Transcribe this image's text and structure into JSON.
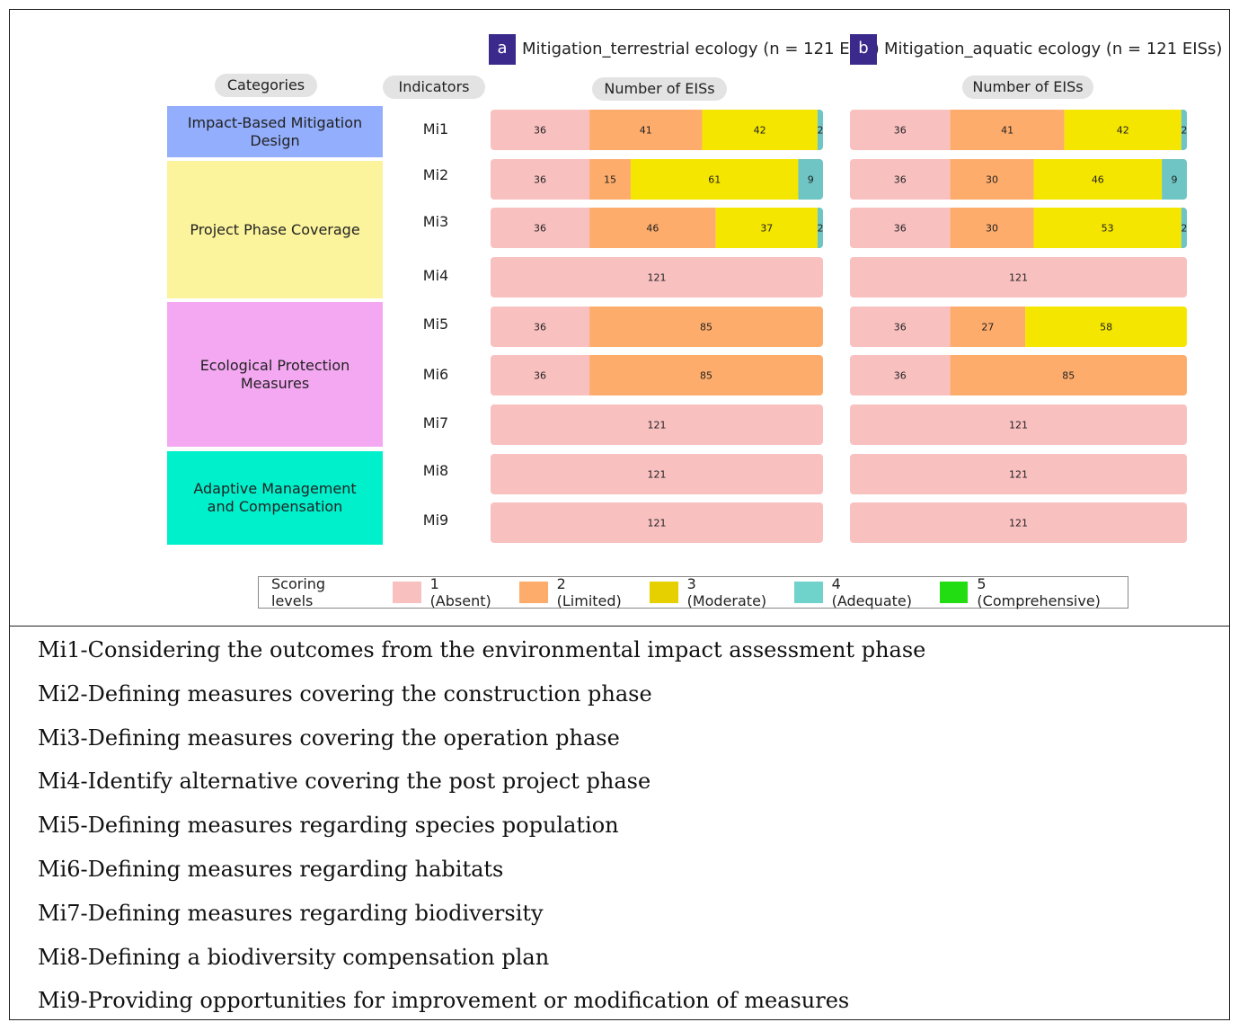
{
  "chart_data": [
    {
      "type": "bar",
      "orientation": "horizontal",
      "stacked": true,
      "panel_label": "a",
      "title": "Mitigation_terrestrial ecology (n = 121 EISs)",
      "xlabel": "Number of EISs",
      "categories": [
        "Mi1",
        "Mi2",
        "Mi3",
        "Mi4",
        "Mi5",
        "Mi6",
        "Mi7",
        "Mi8",
        "Mi9"
      ],
      "xlim": [
        0,
        121
      ],
      "series": [
        {
          "name": "1 (Absent)",
          "values": [
            36,
            36,
            36,
            121,
            36,
            36,
            121,
            121,
            121
          ]
        },
        {
          "name": "2 (Limited)",
          "values": [
            41,
            15,
            46,
            0,
            85,
            85,
            0,
            0,
            0
          ]
        },
        {
          "name": "3 (Moderate)",
          "values": [
            42,
            61,
            37,
            0,
            0,
            0,
            0,
            0,
            0
          ]
        },
        {
          "name": "4 (Adequate)",
          "values": [
            2,
            9,
            2,
            0,
            0,
            0,
            0,
            0,
            0
          ]
        },
        {
          "name": "5 (Comprehensive)",
          "values": [
            0,
            0,
            0,
            0,
            0,
            0,
            0,
            0,
            0
          ]
        }
      ]
    },
    {
      "type": "bar",
      "orientation": "horizontal",
      "stacked": true,
      "panel_label": "b",
      "title": "Mitigation_aquatic ecology (n = 121 EISs)",
      "xlabel": "Number of EISs",
      "categories": [
        "Mi1",
        "Mi2",
        "Mi3",
        "Mi4",
        "Mi5",
        "Mi6",
        "Mi7",
        "Mi8",
        "Mi9"
      ],
      "xlim": [
        0,
        121
      ],
      "series": [
        {
          "name": "1 (Absent)",
          "values": [
            36,
            36,
            36,
            121,
            36,
            36,
            121,
            121,
            121
          ]
        },
        {
          "name": "2 (Limited)",
          "values": [
            41,
            30,
            30,
            0,
            27,
            85,
            0,
            0,
            0
          ]
        },
        {
          "name": "3 (Moderate)",
          "values": [
            42,
            46,
            53,
            0,
            58,
            0,
            0,
            0,
            0
          ]
        },
        {
          "name": "4 (Adequate)",
          "values": [
            2,
            9,
            2,
            0,
            0,
            0,
            0,
            0,
            0
          ]
        },
        {
          "name": "5 (Comprehensive)",
          "values": [
            0,
            0,
            0,
            0,
            0,
            0,
            0,
            0,
            0
          ]
        }
      ]
    }
  ],
  "headers": {
    "categories": "Categories",
    "indicators": "Indicators"
  },
  "categories": [
    {
      "label": "Impact-Based Mitigation Design",
      "color": "#93aefc",
      "indicators": [
        "Mi1"
      ]
    },
    {
      "label": "Project Phase Coverage",
      "color": "#fbf49c",
      "indicators": [
        "Mi2",
        "Mi3",
        "Mi4"
      ]
    },
    {
      "label": "Ecological Protection Measures",
      "color": "#f4a8f2",
      "indicators": [
        "Mi5",
        "Mi6",
        "Mi7"
      ]
    },
    {
      "label": "Adaptive Management and Compensation",
      "color": "#00f0cc",
      "indicators": [
        "Mi8",
        "Mi9"
      ]
    }
  ],
  "legend": {
    "title": "Scoring levels",
    "items": [
      {
        "label": "1 (Absent)",
        "color": "#f9c0c0"
      },
      {
        "label": "2 (Limited)",
        "color": "#fdac6b"
      },
      {
        "label": "3 (Moderate)",
        "color": "#e6d000"
      },
      {
        "label": "4 (Adequate)",
        "color": "#6fd3cc"
      },
      {
        "label": "5 (Comprehensive)",
        "color": "#22dd11"
      }
    ]
  },
  "bar_colors": [
    "#f9c0c0",
    "#fdac6b",
    "#f5e600",
    "#6fc4c4",
    "#22dd11"
  ],
  "definitions": [
    "Mi1-Considering the outcomes from the environmental impact assessment phase",
    "Mi2-Defining measures covering the construction phase",
    "Mi3-Defining measures covering the operation phase",
    "Mi4-Identify alternative covering the post project phase",
    "Mi5-Defining measures regarding species population",
    "Mi6-Defining measures regarding habitats",
    "Mi7-Defining measures regarding biodiversity",
    "Mi8-Defining a biodiversity compensation plan",
    "Mi9-Providing opportunities for improvement or modification of measures"
  ]
}
